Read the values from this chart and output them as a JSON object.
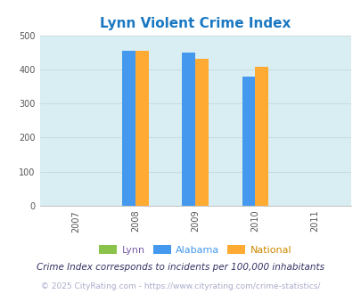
{
  "title": "Lynn Violent Crime Index",
  "title_color": "#1a78c2",
  "years": [
    2007,
    2008,
    2009,
    2010,
    2011
  ],
  "data_years": [
    2008,
    2009,
    2010
  ],
  "lynn_values": [
    0,
    0,
    0
  ],
  "alabama_values": [
    455,
    450,
    378
  ],
  "national_values": [
    455,
    432,
    407
  ],
  "lynn_color": "#8bc34a",
  "alabama_color": "#4499ee",
  "national_color": "#ffaa33",
  "plot_bg_color": "#d8eef3",
  "ylim": [
    0,
    500
  ],
  "yticks": [
    0,
    100,
    200,
    300,
    400,
    500
  ],
  "bar_width": 0.22,
  "legend_labels": [
    "Lynn",
    "Alabama",
    "National"
  ],
  "legend_label_colors": [
    "#7b5ea7",
    "#4499ee",
    "#cc8800"
  ],
  "footer_line1": "Crime Index corresponds to incidents per 100,000 inhabitants",
  "footer_line2": "© 2025 CityRating.com - https://www.cityrating.com/crime-statistics/",
  "grid_color": "#c8dde3",
  "tick_color": "#555555",
  "title_fontsize": 11,
  "tick_fontsize": 7,
  "legend_fontsize": 8,
  "footer1_fontsize": 7.5,
  "footer2_fontsize": 6.5
}
